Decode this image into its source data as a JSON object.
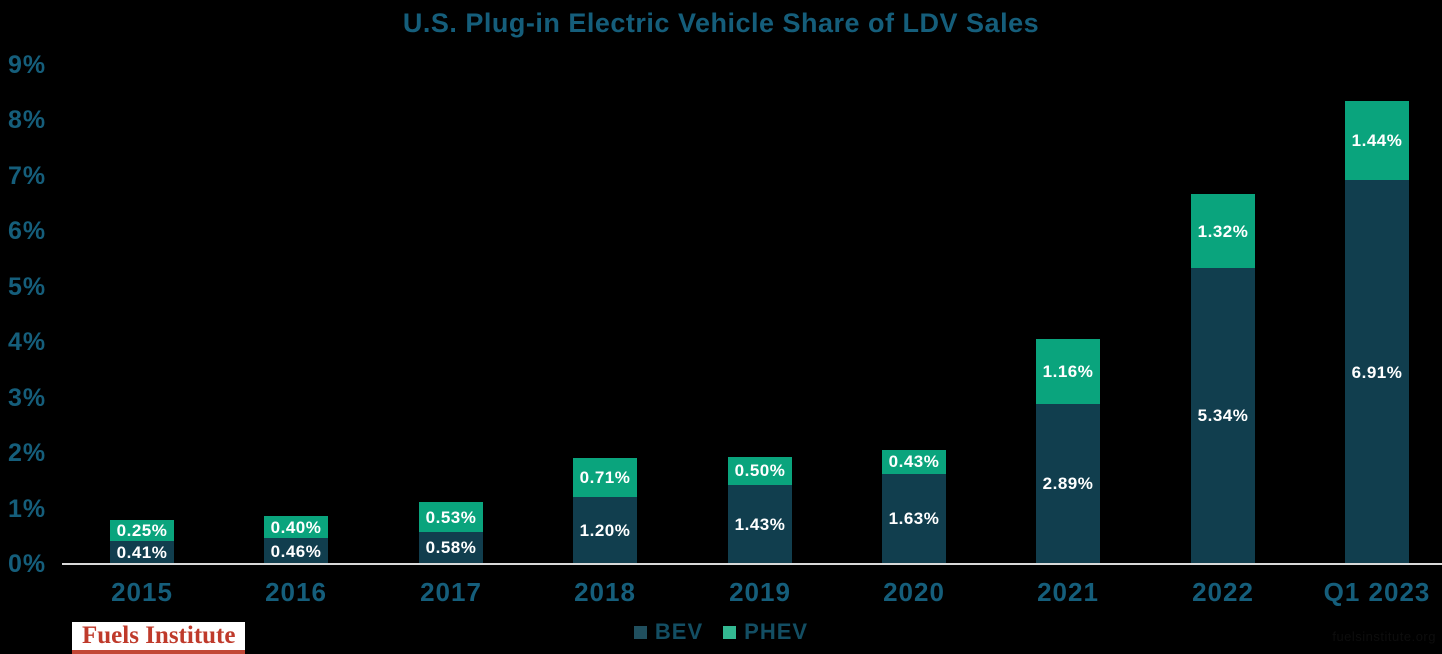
{
  "title": "U.S. Plug-in Electric Vehicle Share of LDV Sales",
  "chart_data": {
    "type": "bar",
    "stacked": true,
    "title": "U.S. Plug-in Electric Vehicle Share of LDV Sales",
    "categories": [
      "2015",
      "2016",
      "2017",
      "2018",
      "2019",
      "2020",
      "2021",
      "2022",
      "Q1 2023"
    ],
    "series": [
      {
        "name": "BEV",
        "color": "#113e4e",
        "legend_color": "#204f5e",
        "values": [
          0.41,
          0.46,
          0.58,
          1.2,
          1.43,
          1.63,
          2.89,
          5.34,
          6.91
        ],
        "labels": [
          "0.41%",
          "0.46%",
          "0.58%",
          "1.20%",
          "1.43%",
          "1.63%",
          "2.89%",
          "5.34%",
          "6.91%"
        ]
      },
      {
        "name": "PHEV",
        "color": "#0aa47d",
        "legend_color": "#33b891",
        "values": [
          0.25,
          0.4,
          0.53,
          0.71,
          0.5,
          0.43,
          1.16,
          1.32,
          1.44
        ],
        "labels": [
          "0.25%",
          "0.40%",
          "0.53%",
          "0.71%",
          "0.50%",
          "0.43%",
          "1.16%",
          "1.32%",
          "1.44%"
        ]
      }
    ],
    "xlabel": "",
    "ylabel": "",
    "ylim": [
      0,
      9
    ],
    "yticks": [
      "0%",
      "1%",
      "2%",
      "3%",
      "4%",
      "5%",
      "6%",
      "7%",
      "8%",
      "9%"
    ],
    "grid": false,
    "legend_position": "bottom-center",
    "data_label_color": "#ffffff"
  },
  "footer": {
    "logo_text": "Fuels Institute",
    "watermark": "fuelsinstitute.org"
  },
  "colors": {
    "background": "#000000",
    "accent_text": "#155e7b",
    "axis_line": "#d9d9d9",
    "bev": "#113e4e",
    "phev": "#0aa47d",
    "logo_red": "#bf3a2b"
  }
}
